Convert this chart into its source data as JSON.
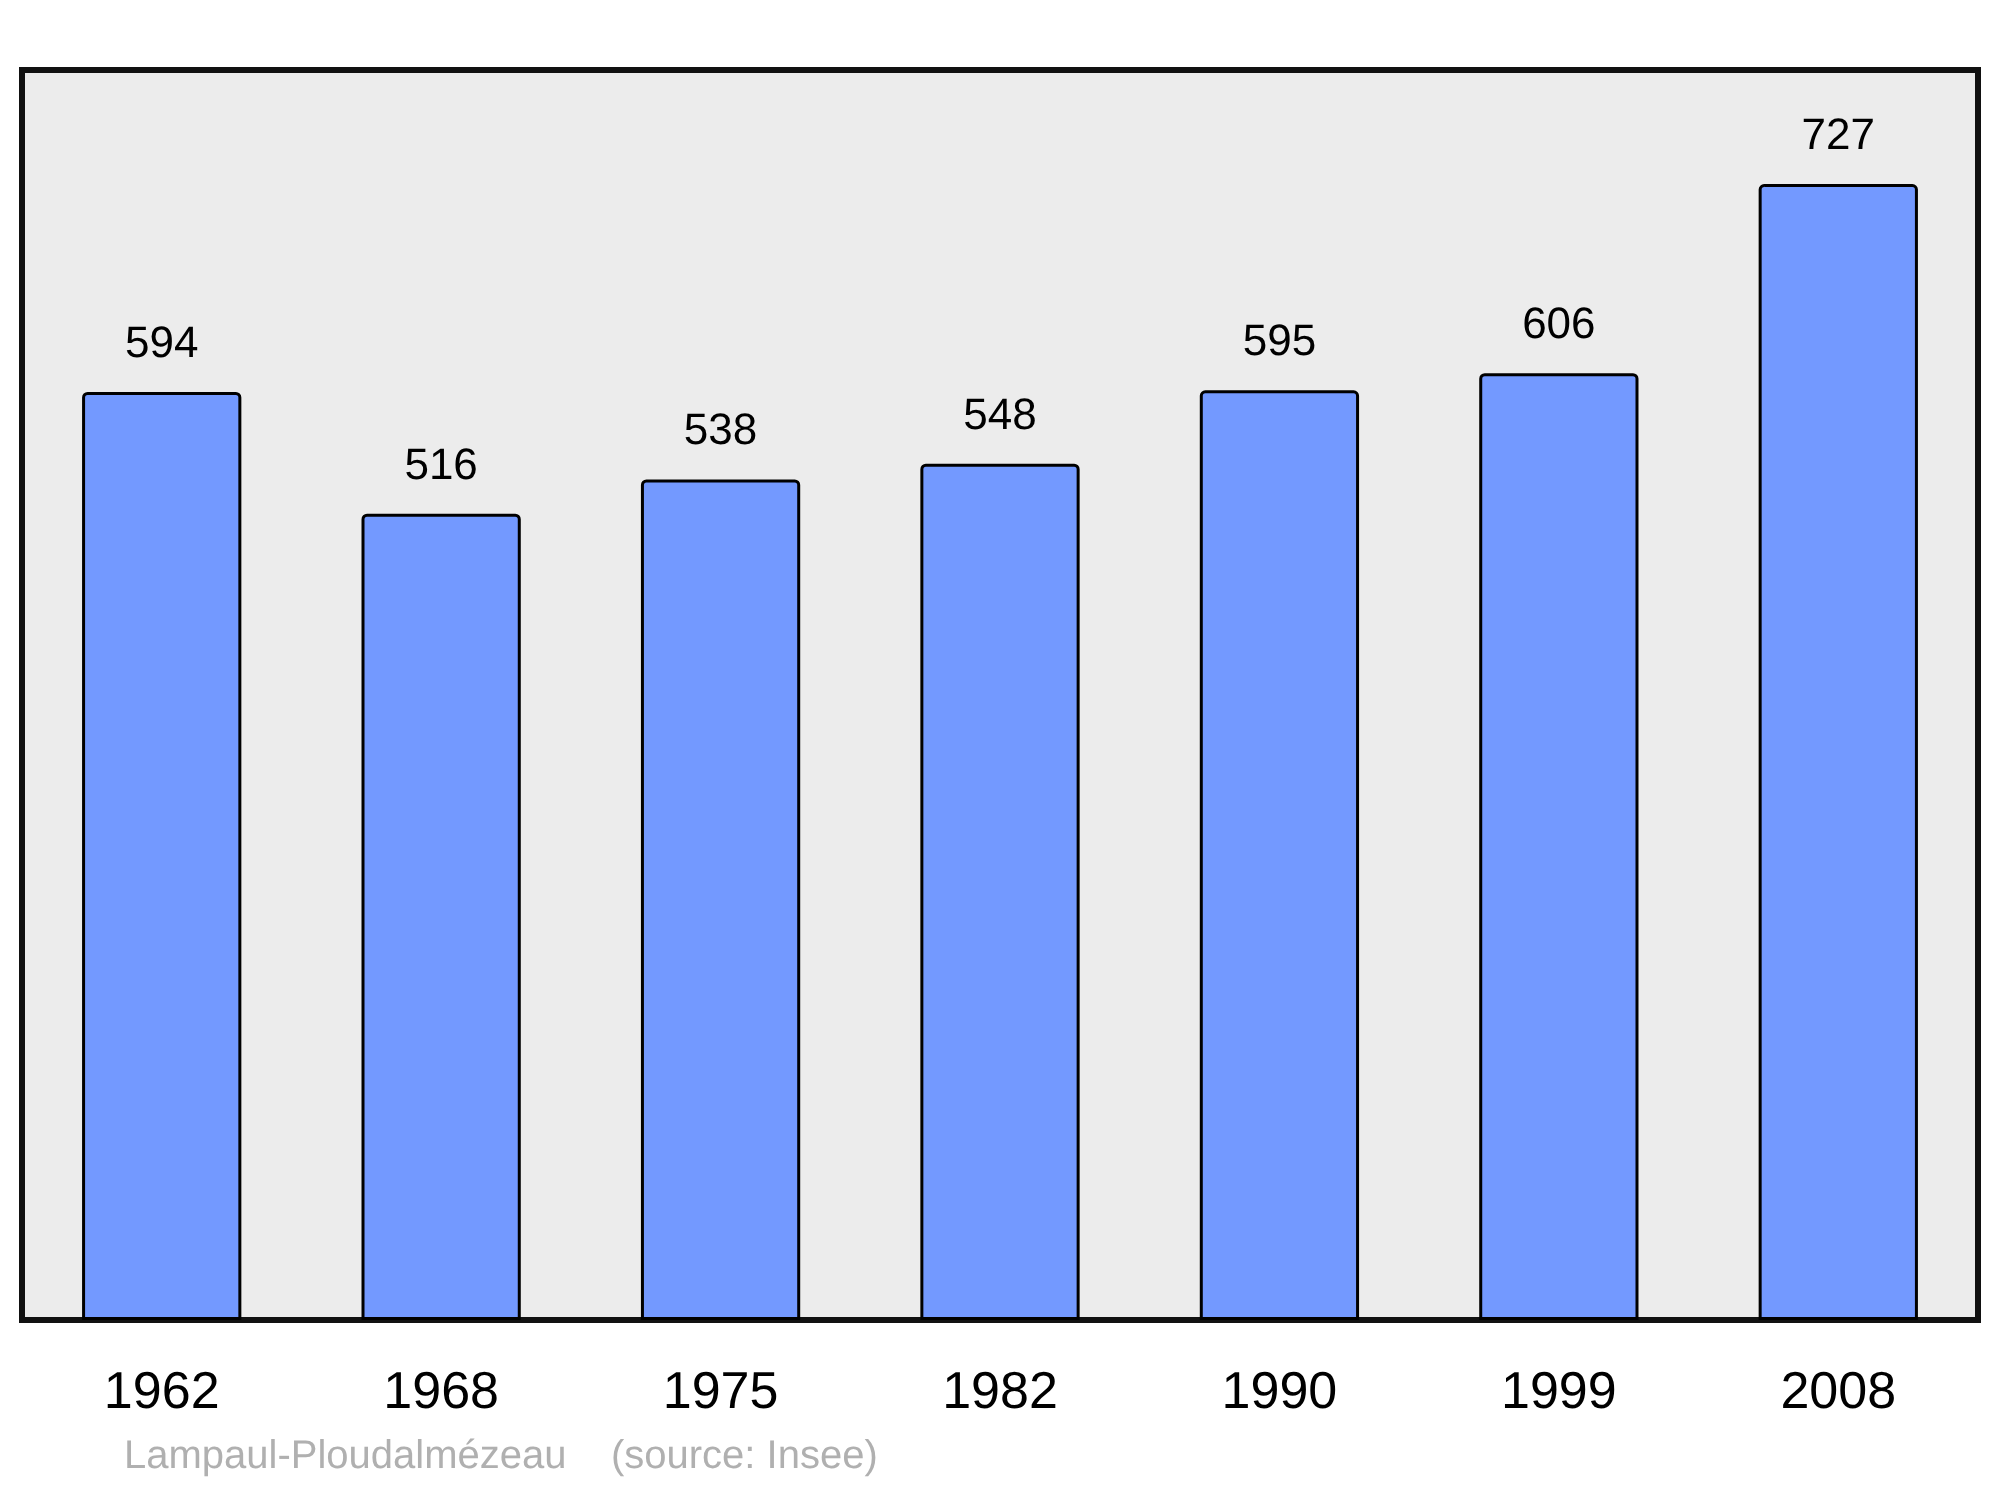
{
  "chart_data": {
    "type": "bar",
    "categories": [
      "1962",
      "1968",
      "1975",
      "1982",
      "1990",
      "1999",
      "2008"
    ],
    "values": [
      594,
      516,
      538,
      548,
      595,
      606,
      727
    ],
    "color": "#7399ff",
    "ylim": [
      0,
      800
    ],
    "data_labels": true,
    "annotations": [
      "Lampaul-Ploudalmézeau    (source: Insee)"
    ]
  }
}
